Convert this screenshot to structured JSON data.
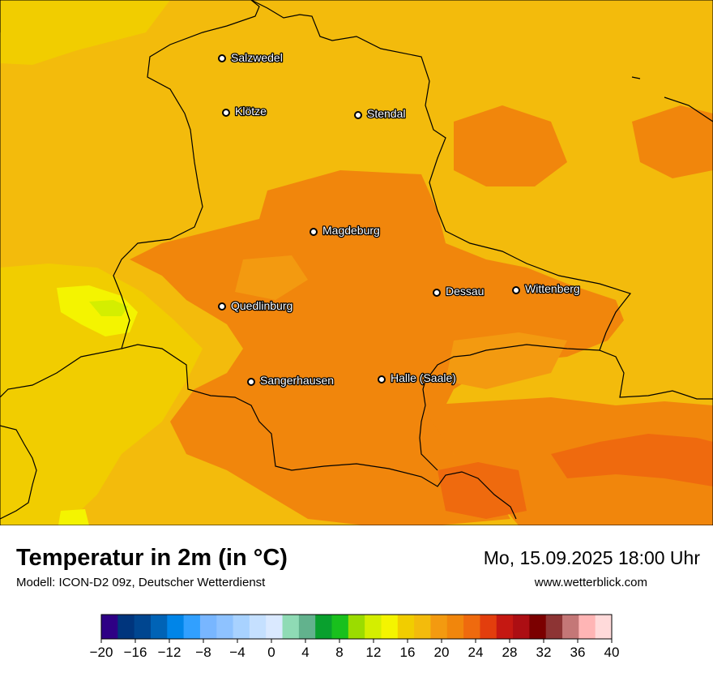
{
  "title": "Temperatur in 2m (in °C)",
  "model": "Modell: ICON-D2 09z, Deutscher Wetterdienst",
  "datetime": "Mo, 15.09.2025 18:00 Uhr",
  "website": "www.wetterblick.com",
  "colors": {
    "c14": "#f1cd00",
    "c18": "#f3bb0c",
    "c20": "#f39a10",
    "c22": "#f1860c",
    "c24": "#ef6a0e",
    "c12": "#d4ee00",
    "c16": "#f4f400",
    "border": "#000000"
  },
  "cities": [
    {
      "name": "Salzwedel"
    },
    {
      "name": "Klötze"
    },
    {
      "name": "Stendal"
    },
    {
      "name": "Magdeburg"
    },
    {
      "name": "Quedlinburg"
    },
    {
      "name": "Dessau"
    },
    {
      "name": "Wittenberg"
    },
    {
      "name": "Sangerhausen"
    },
    {
      "name": "Halle (Saale)"
    }
  ],
  "legend": {
    "colors": [
      "#2e0085",
      "#00357d",
      "#004690",
      "#0063b6",
      "#0085e8",
      "#31a0ff",
      "#78b6ff",
      "#8ec2ff",
      "#a8d2ff",
      "#c5e0ff",
      "#dae9ff",
      "#8fdbb5",
      "#62b28d",
      "#09a02e",
      "#19c01d",
      "#9bdc00",
      "#d4ee00",
      "#f4f400",
      "#f1cd00",
      "#f3bb0c",
      "#f39a10",
      "#f1860c",
      "#ef6a0e",
      "#e33e0d",
      "#c51812",
      "#ac0e13",
      "#7b0000",
      "#8d3434",
      "#c47777",
      "#ffb5b5",
      "#ffdada"
    ],
    "ticks": [
      "−20",
      "−16",
      "−12",
      "−8",
      "−4",
      "0",
      "4",
      "8",
      "12",
      "16",
      "20",
      "24",
      "28",
      "32",
      "36",
      "40"
    ]
  }
}
